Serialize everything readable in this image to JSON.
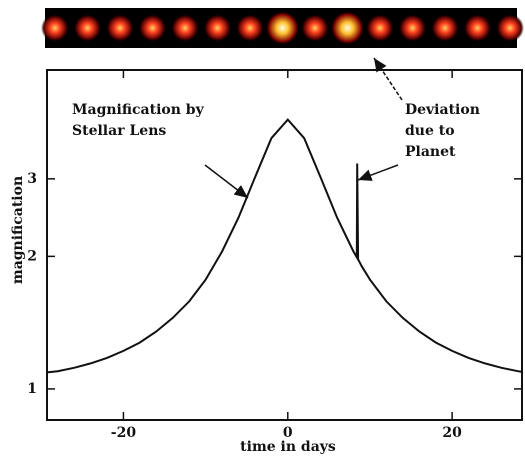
{
  "chart_data": {
    "type": "line",
    "x_label": "time in days",
    "y_label": "magnification",
    "x": [
      -29.3,
      -28,
      -26,
      -24,
      -22,
      -20,
      -18,
      -16,
      -14,
      -12,
      -10,
      -8,
      -6,
      -4,
      -2,
      0,
      2,
      4,
      6,
      8,
      8.4,
      8.45,
      8.55,
      9,
      10,
      12,
      14,
      16,
      18,
      20,
      22,
      24,
      26,
      28,
      28.5
    ],
    "values": [
      1.09,
      1.097,
      1.117,
      1.143,
      1.176,
      1.22,
      1.275,
      1.35,
      1.45,
      1.58,
      1.77,
      2.05,
      2.45,
      3.02,
      3.71,
      4.09,
      3.71,
      3.02,
      2.45,
      2.05,
      1.99,
      3.25,
      1.97,
      1.9,
      1.77,
      1.58,
      1.45,
      1.35,
      1.275,
      1.22,
      1.176,
      1.143,
      1.117,
      1.097,
      1.093
    ],
    "color": "#111111",
    "xlim": [
      -29.3,
      28.5
    ],
    "ylim": [
      0.85,
      5.3
    ],
    "xticks": [
      -20,
      0,
      20
    ],
    "yticks": [
      1,
      2,
      3
    ],
    "log_y": true,
    "annotations": [
      [
        "Magnification by",
        "Stellar Lens"
      ],
      [
        "Deviation",
        "due to",
        "Planet"
      ]
    ]
  }
}
